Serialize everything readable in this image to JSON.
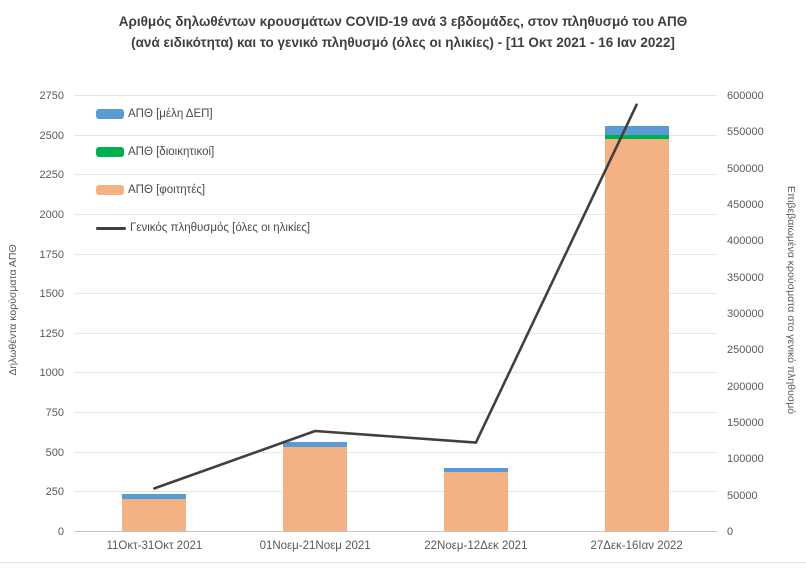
{
  "title": {
    "line1": "Αριθμός δηλωθέντων κρουσμάτων COVID-19 ανά 3 εβδομάδες, στον πληθυσμό του ΑΠΘ",
    "line2": "(ανά ειδικότητα) και το γενικό πληθυσμό (όλες οι ηλικίες) - [11 Οκτ 2021 - 16 Ιαν 2022]"
  },
  "chart_data": {
    "type": "bar",
    "subtype": "stacked bars (left axis) + line (right axis) combo",
    "categories": [
      "11Οκτ-31Οκτ 2021",
      "01Νοεμ-21Νοεμ 2021",
      "22Νοεμ-12Δεκ 2021",
      "27Δεκ-16Ιαν 2022"
    ],
    "series": [
      {
        "name": "ΑΠΘ [μέλη ΔΕΠ]",
        "type": "bar",
        "color": "#5B9BD5",
        "stack_position": "top",
        "values": [
          30,
          28,
          23,
          60
        ]
      },
      {
        "name": "ΑΠΘ [διοικητικοί]",
        "type": "bar",
        "color": "#00B050",
        "stack_position": "middle",
        "values": [
          3,
          4,
          3,
          25
        ]
      },
      {
        "name": "ΑΠΘ [φοιτητές]",
        "type": "bar",
        "color": "#F4B183",
        "stack_position": "bottom",
        "values": [
          200,
          528,
          370,
          2470
        ]
      },
      {
        "name": "Γενικός πληθυσμός [όλες οι ηλικίες]",
        "type": "line",
        "color": "#404040",
        "axis": "right",
        "values": [
          60000,
          139000,
          123000,
          588000
        ]
      }
    ],
    "left_axis": {
      "label": "Δηλωθέντα κορύσματα ΑΠΘ",
      "min": 0,
      "max": 2750,
      "step": 250
    },
    "right_axis": {
      "label": "Επιβεβαιωμένα κρούσματα στο γενικό πληθυσμό",
      "min": 0,
      "max": 600000,
      "step": 50000
    },
    "grid": true,
    "legend_position": "top-left inside plot area"
  },
  "colors": {
    "background": "#FFFFFF",
    "gridline": "#E7E7E7",
    "axis_line": "#C4C4C4",
    "tick_text": "#595959",
    "title_text": "#3F3F3F"
  }
}
